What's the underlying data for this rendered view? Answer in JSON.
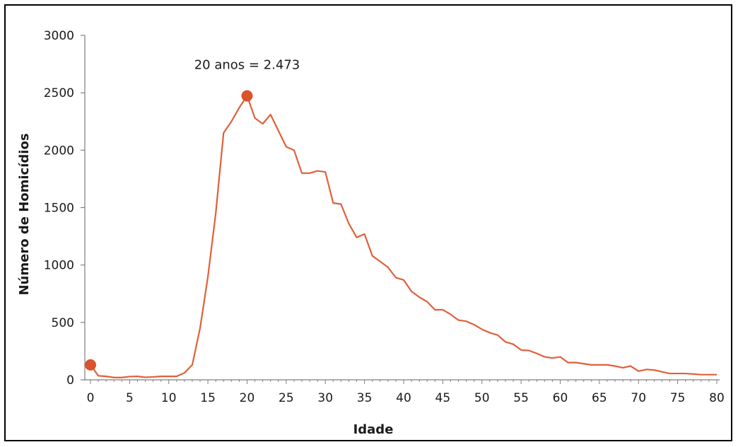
{
  "chart_data": {
    "type": "line",
    "title": "",
    "xlabel": "Idade",
    "ylabel": "Número de Homicídios",
    "xlim": [
      0,
      80
    ],
    "ylim": [
      0,
      3000
    ],
    "x_ticks": [
      0,
      5,
      10,
      15,
      20,
      25,
      30,
      35,
      40,
      45,
      50,
      55,
      60,
      65,
      70,
      75,
      80
    ],
    "y_ticks": [
      0,
      500,
      1000,
      1500,
      2000,
      2500,
      3000
    ],
    "grid": false,
    "line_color": "#e0603a",
    "marker_color": "#d9542b",
    "series": [
      {
        "x": [
          0,
          1,
          2,
          3,
          4,
          5,
          6,
          7,
          8,
          9,
          10,
          11,
          12,
          13,
          14,
          15,
          16,
          17,
          18,
          19,
          20,
          21,
          22,
          23,
          24,
          25,
          26,
          27,
          28,
          29,
          30,
          31,
          32,
          33,
          34,
          35,
          36,
          37,
          38,
          39,
          40,
          41,
          42,
          43,
          44,
          45,
          46,
          47,
          48,
          49,
          50,
          51,
          52,
          53,
          54,
          55,
          56,
          57,
          58,
          59,
          60,
          61,
          62,
          63,
          64,
          65,
          66,
          67,
          68,
          69,
          70,
          71,
          72,
          73,
          74,
          75,
          76,
          77,
          78,
          79,
          80
        ],
        "values": [
          130,
          35,
          30,
          20,
          20,
          28,
          30,
          22,
          25,
          30,
          30,
          30,
          60,
          130,
          450,
          900,
          1450,
          2150,
          2250,
          2370,
          2473,
          2280,
          2230,
          2310,
          2170,
          2030,
          2000,
          1800,
          1800,
          1820,
          1810,
          1540,
          1530,
          1360,
          1240,
          1270,
          1080,
          1030,
          980,
          890,
          870,
          770,
          720,
          680,
          610,
          610,
          570,
          520,
          510,
          480,
          440,
          410,
          390,
          330,
          310,
          260,
          255,
          230,
          200,
          190,
          200,
          150,
          150,
          140,
          130,
          130,
          130,
          120,
          105,
          120,
          75,
          90,
          85,
          70,
          55,
          55,
          55,
          50,
          45,
          45,
          45
        ]
      }
    ],
    "highlighted_points": [
      {
        "x": 0,
        "y": 130
      },
      {
        "x": 20,
        "y": 2473
      }
    ],
    "annotations": [
      {
        "text": "20 anos = 2.473",
        "x": 20,
        "y": 2473
      }
    ]
  }
}
